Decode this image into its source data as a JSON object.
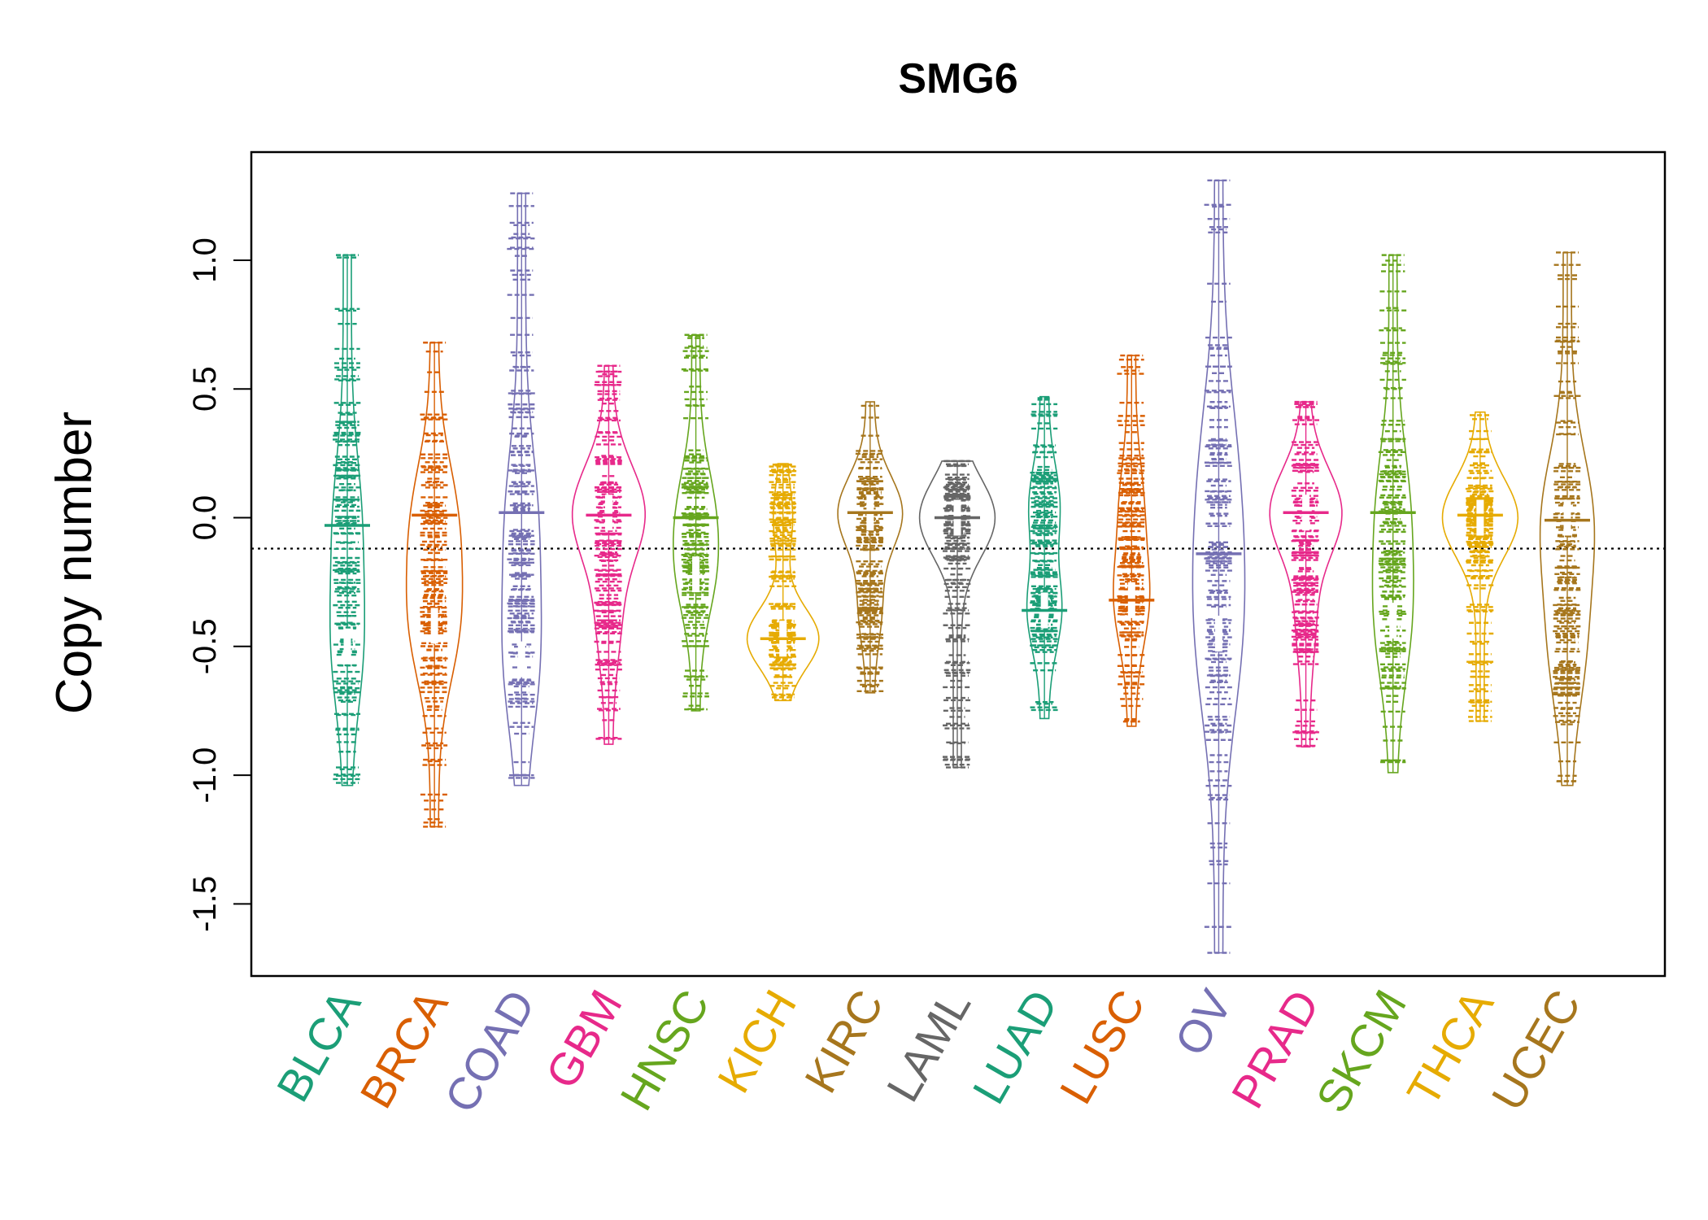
{
  "chart_data": {
    "type": "beanplot",
    "title": "SMG6",
    "ylabel": "Copy number",
    "xlabel": "",
    "ylim": [
      -1.78,
      1.42
    ],
    "yticks": [
      1.0,
      0.5,
      0.0,
      -0.5,
      -1.0,
      -1.5
    ],
    "ytick_labels": [
      "1.0",
      "0.5",
      "0.0",
      "-0.5",
      "-1.0",
      "-1.5"
    ],
    "reference_line": {
      "y": -0.12,
      "style": "dotted"
    },
    "grid": false,
    "legend": "none",
    "series": [
      {
        "name": "BLCA",
        "color": "#1B9E77",
        "min": -1.04,
        "max": 1.02,
        "mean": -0.03,
        "outliers": [
          1.02,
          0.55,
          -0.97,
          -1.03
        ],
        "modes": [
          [
            0.0,
            0.25
          ],
          [
            -0.5,
            0.3
          ]
        ]
      },
      {
        "name": "BRCA",
        "color": "#D95F02",
        "min": -1.2,
        "max": 0.68,
        "mean": 0.01,
        "outliers": [
          0.68,
          -0.94,
          -1.2
        ],
        "modes": [
          [
            0.0,
            0.45
          ],
          [
            -0.42,
            0.5
          ]
        ]
      },
      {
        "name": "COAD",
        "color": "#7570B3",
        "min": -1.04,
        "max": 1.26,
        "mean": 0.02,
        "outliers": [
          1.26,
          0.96,
          0.41
        ],
        "modes": [
          [
            0.0,
            0.3
          ],
          [
            -0.55,
            0.35
          ]
        ]
      },
      {
        "name": "GBM",
        "color": "#E7298A",
        "min": -0.88,
        "max": 0.59,
        "mean": 0.01,
        "outliers": [
          0.59,
          0.48
        ],
        "modes": [
          [
            0.02,
            0.85
          ],
          [
            -0.4,
            0.2
          ]
        ]
      },
      {
        "name": "HNSC",
        "color": "#66A61E",
        "min": -0.75,
        "max": 0.71,
        "mean": 0.0,
        "outliers": [
          0.71,
          0.66,
          0.46
        ],
        "modes": [
          [
            0.05,
            0.3
          ],
          [
            -0.22,
            0.35
          ]
        ]
      },
      {
        "name": "KICH",
        "color": "#E6AB02",
        "min": -0.71,
        "max": 0.21,
        "mean": -0.47,
        "outliers": [],
        "modes": [
          [
            -0.47,
            0.85
          ],
          [
            0.0,
            0.15
          ]
        ]
      },
      {
        "name": "KIRC",
        "color": "#A6761D",
        "min": -0.68,
        "max": 0.45,
        "mean": 0.02,
        "outliers": [],
        "modes": [
          [
            0.02,
            0.75
          ],
          [
            -0.35,
            0.2
          ]
        ]
      },
      {
        "name": "LAML",
        "color": "#666666",
        "min": -0.97,
        "max": 0.22,
        "mean": 0.0,
        "outliers": [
          -0.36,
          -0.48,
          -0.56,
          -0.7,
          -0.8,
          -0.97
        ],
        "modes": [
          [
            0.0,
            0.9
          ]
        ]
      },
      {
        "name": "LUAD",
        "color": "#1B9E77",
        "min": -0.78,
        "max": 0.47,
        "mean": -0.36,
        "outliers": [],
        "modes": [
          [
            0.05,
            0.3
          ],
          [
            -0.36,
            0.35
          ]
        ]
      },
      {
        "name": "LUSC",
        "color": "#D95F02",
        "min": -0.81,
        "max": 0.63,
        "mean": -0.32,
        "outliers": [
          0.63
        ],
        "modes": [
          [
            0.05,
            0.2
          ],
          [
            -0.32,
            0.35
          ]
        ]
      },
      {
        "name": "OV",
        "color": "#7570B3",
        "min": -1.69,
        "max": 1.31,
        "mean": -0.14,
        "outliers": [
          1.31,
          -1.42,
          -1.69
        ],
        "modes": [
          [
            0.15,
            0.35
          ],
          [
            -0.45,
            0.45
          ]
        ]
      },
      {
        "name": "PRAD",
        "color": "#E7298A",
        "min": -0.89,
        "max": 0.45,
        "mean": 0.02,
        "outliers": [
          0.45
        ],
        "modes": [
          [
            0.02,
            0.85
          ],
          [
            -0.4,
            0.15
          ]
        ]
      },
      {
        "name": "SKCM",
        "color": "#66A61E",
        "min": -0.99,
        "max": 1.02,
        "mean": 0.02,
        "outliers": [
          1.02
        ],
        "modes": [
          [
            0.05,
            0.3
          ],
          [
            -0.4,
            0.35
          ]
        ]
      },
      {
        "name": "THCA",
        "color": "#E6AB02",
        "min": -0.79,
        "max": 0.41,
        "mean": 0.01,
        "outliers": [
          -0.53,
          -0.65,
          -0.75,
          -0.79
        ],
        "modes": [
          [
            0.0,
            0.9
          ]
        ]
      },
      {
        "name": "UCEC",
        "color": "#A6761D",
        "min": -1.04,
        "max": 1.03,
        "mean": -0.01,
        "outliers": [
          1.03,
          0.82,
          0.74,
          0.7,
          0.6
        ],
        "modes": [
          [
            0.0,
            0.55
          ],
          [
            -0.5,
            0.35
          ]
        ]
      }
    ]
  }
}
